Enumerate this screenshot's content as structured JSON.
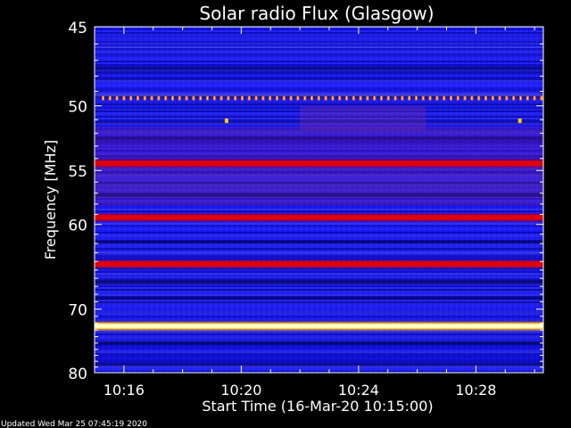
{
  "chart_data": {
    "type": "heatmap",
    "title": "Solar radio Flux (Glasgow)",
    "xlabel": "Start Time (16-Mar-20 10:15:00)",
    "ylabel": "Frequency [MHz]",
    "x_range_minutes": [
      10.25,
      10.5
    ],
    "x_ticks": [
      {
        "label": "10:16",
        "value": 16
      },
      {
        "label": "10:20",
        "value": 20
      },
      {
        "label": "10:24",
        "value": 24
      },
      {
        "label": "10:28",
        "value": 28
      }
    ],
    "x_minutes_range": [
      15,
      30.3
    ],
    "y_range_mhz": [
      45,
      80
    ],
    "y_reversed": true,
    "y_ticks": [
      {
        "label": "45",
        "value": 45
      },
      {
        "label": "50",
        "value": 50
      },
      {
        "label": "55",
        "value": 55
      },
      {
        "label": "60",
        "value": 60
      },
      {
        "label": "70",
        "value": 70
      },
      {
        "label": "80",
        "value": 80
      }
    ],
    "y_scale": "reciprocal",
    "bands_mhz": [
      {
        "freq": 54.4,
        "intensity": "red"
      },
      {
        "freq": 59.3,
        "intensity": "red"
      },
      {
        "freq": 64.3,
        "intensity": "red"
      },
      {
        "freq": 72.4,
        "intensity": "yellow-white"
      }
    ],
    "spikes": {
      "freq_mhz": 49.5,
      "color": "orange"
    },
    "colormap": [
      "#000033",
      "#0000ff",
      "#3333cc",
      "#cc0000",
      "#ffff66",
      "#ffffff"
    ],
    "footer": "Updated Wed Mar 25 07:45:19 2020"
  }
}
